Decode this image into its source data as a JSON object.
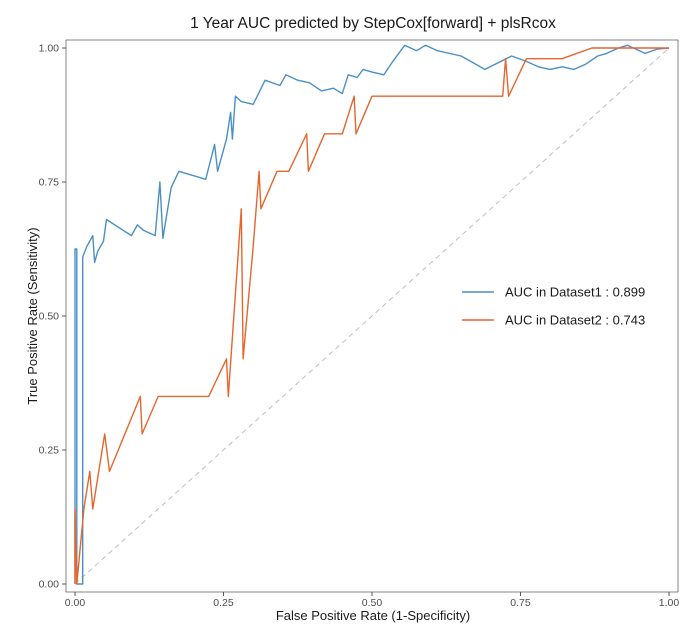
{
  "chart_data": {
    "type": "line",
    "title": "1 Year AUC predicted by StepCox[forward] + plsRcox",
    "xlabel": "False Positive Rate (1-Specificity)",
    "ylabel": "True Positive Rate (Sensitivity)",
    "xlim": [
      0,
      1
    ],
    "ylim": [
      0,
      1
    ],
    "xticks": [
      "0.00",
      "0.25",
      "0.50",
      "0.75",
      "1.00"
    ],
    "yticks": [
      "0.00",
      "0.25",
      "0.50",
      "0.75",
      "1.00"
    ],
    "grid": false,
    "legend_position": "right",
    "reference_line": {
      "x": [
        0,
        1
      ],
      "y": [
        0,
        1
      ],
      "style": "dashed",
      "color": "#bfbfbf"
    },
    "series": [
      {
        "name": "AUC in Dataset1 : 0.899",
        "color": "#4a90c4",
        "x": [
          0.0,
          0.0,
          0.003,
          0.003,
          0.013,
          0.013,
          0.02,
          0.03,
          0.033,
          0.038,
          0.048,
          0.053,
          0.095,
          0.105,
          0.115,
          0.135,
          0.143,
          0.148,
          0.162,
          0.175,
          0.22,
          0.235,
          0.24,
          0.255,
          0.262,
          0.265,
          0.27,
          0.28,
          0.3,
          0.32,
          0.345,
          0.355,
          0.375,
          0.395,
          0.415,
          0.435,
          0.45,
          0.46,
          0.475,
          0.485,
          0.5,
          0.52,
          0.535,
          0.555,
          0.575,
          0.59,
          0.61,
          0.65,
          0.69,
          0.735,
          0.76,
          0.78,
          0.8,
          0.82,
          0.84,
          0.86,
          0.88,
          0.895,
          0.915,
          0.93,
          0.96,
          0.98,
          1.0
        ],
        "y": [
          0.0,
          0.625,
          0.625,
          0.0,
          0.0,
          0.61,
          0.63,
          0.65,
          0.6,
          0.62,
          0.64,
          0.68,
          0.65,
          0.67,
          0.66,
          0.65,
          0.75,
          0.645,
          0.74,
          0.77,
          0.755,
          0.82,
          0.77,
          0.83,
          0.88,
          0.83,
          0.91,
          0.9,
          0.895,
          0.94,
          0.93,
          0.95,
          0.94,
          0.935,
          0.92,
          0.925,
          0.915,
          0.95,
          0.945,
          0.96,
          0.955,
          0.95,
          0.975,
          1.005,
          0.995,
          1.005,
          0.995,
          0.985,
          0.96,
          0.985,
          0.975,
          0.965,
          0.96,
          0.965,
          0.96,
          0.97,
          0.985,
          0.99,
          1.0,
          1.005,
          0.99,
          0.998,
          1.0
        ]
      },
      {
        "name": "AUC in Dataset2 : 0.743",
        "color": "#e5662e",
        "x": [
          0.0,
          0.0,
          0.003,
          0.015,
          0.025,
          0.03,
          0.05,
          0.058,
          0.11,
          0.113,
          0.14,
          0.225,
          0.255,
          0.258,
          0.28,
          0.283,
          0.3,
          0.31,
          0.313,
          0.34,
          0.36,
          0.39,
          0.393,
          0.42,
          0.435,
          0.45,
          0.47,
          0.473,
          0.5,
          0.52,
          0.7,
          0.72,
          0.725,
          0.73,
          0.76,
          0.82,
          0.87,
          0.93,
          1.0
        ],
        "y": [
          0.0,
          0.14,
          0.0,
          0.14,
          0.21,
          0.14,
          0.28,
          0.21,
          0.35,
          0.28,
          0.35,
          0.35,
          0.42,
          0.35,
          0.7,
          0.42,
          0.63,
          0.77,
          0.7,
          0.77,
          0.77,
          0.84,
          0.77,
          0.84,
          0.84,
          0.84,
          0.91,
          0.84,
          0.91,
          0.91,
          0.91,
          0.91,
          0.98,
          0.91,
          0.98,
          0.98,
          1.0,
          1.0,
          1.0
        ]
      }
    ]
  }
}
